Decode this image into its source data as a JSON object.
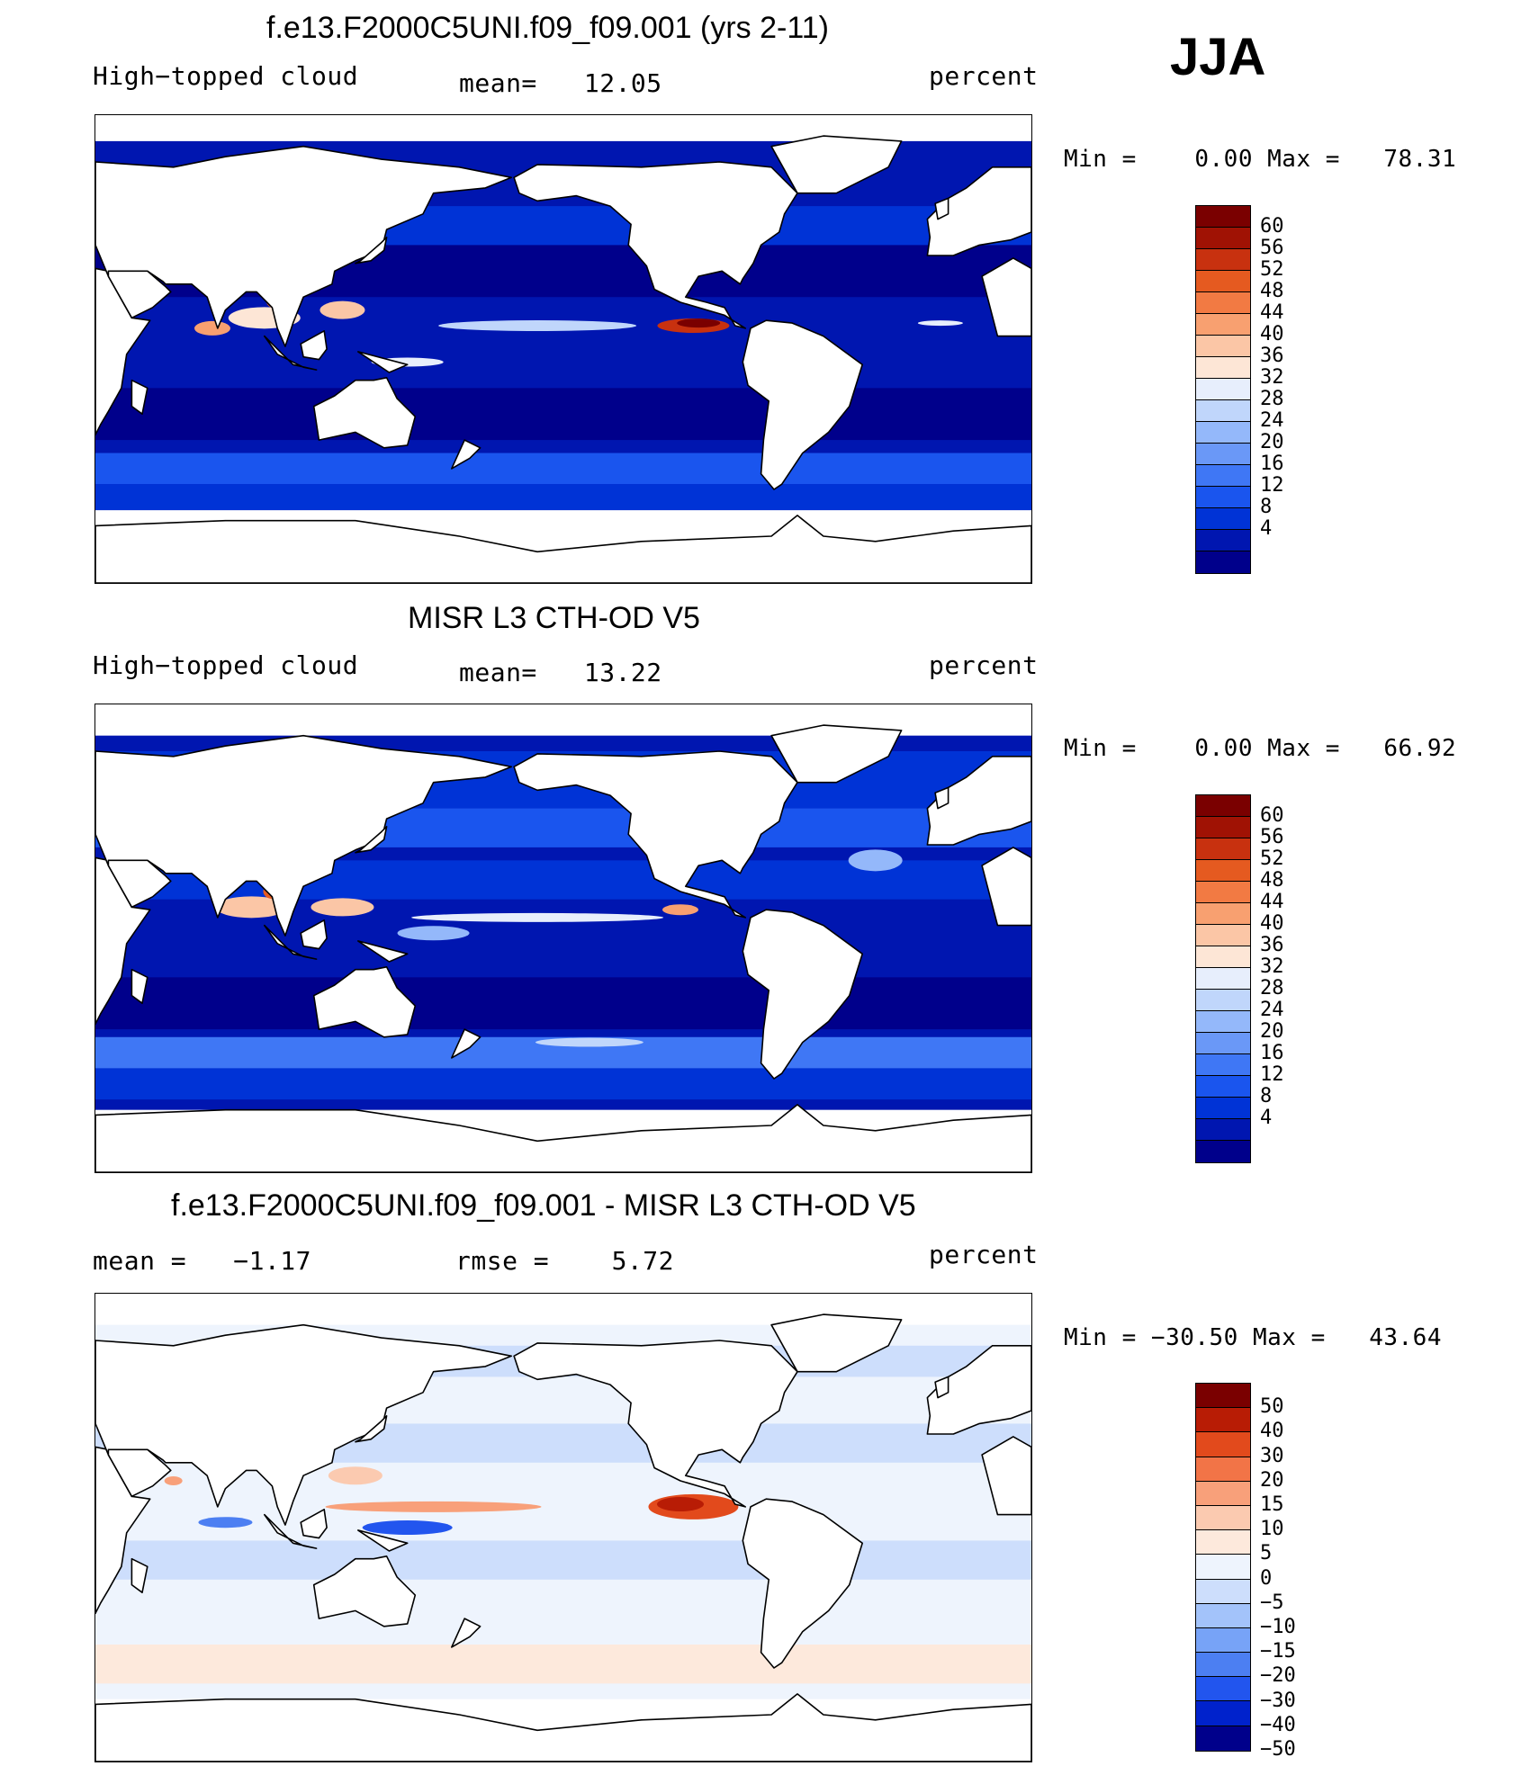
{
  "season": "JJA",
  "colors": {
    "land": "#ffffff",
    "coast": "#000000",
    "cloud_scale": [
      "#00008b",
      "#0016b0",
      "#0033d6",
      "#1a55ee",
      "#3f77f5",
      "#6a98f7",
      "#94b8fa",
      "#c0d6fb",
      "#e7eefc",
      "#fde6d6",
      "#fbc6a6",
      "#f8a070",
      "#f27a43",
      "#e55a20",
      "#c8310f",
      "#a01204",
      "#7a0000"
    ],
    "diff_scale": [
      "#00008b",
      "#0022cc",
      "#2255ee",
      "#4c7ff2",
      "#77a3f7",
      "#a3c3fa",
      "#cddefc",
      "#eef4fd",
      "#fde9dc",
      "#fbcab0",
      "#f8a07a",
      "#f27447",
      "#e24a1c",
      "#b81c05",
      "#7a0000"
    ]
  },
  "panels": [
    {
      "title": "f.e13.F2000C5UNI.f09_f09.001 (yrs 2-11)",
      "left_label": "High−topped cloud",
      "center_label": "mean=   12.05",
      "right_label": "percent",
      "min_max": "Min =    0.00 Max =   78.31",
      "colorbar_ticks": [
        "60",
        "56",
        "52",
        "48",
        "44",
        "40",
        "36",
        "32",
        "28",
        "24",
        "20",
        "16",
        "12",
        "8",
        "4"
      ]
    },
    {
      "title": "MISR L3 CTH-OD V5",
      "left_label": "High−topped cloud",
      "center_label": "mean=   13.22",
      "right_label": "percent",
      "min_max": "Min =    0.00 Max =   66.92",
      "colorbar_ticks": [
        "60",
        "56",
        "52",
        "48",
        "44",
        "40",
        "36",
        "32",
        "28",
        "24",
        "20",
        "16",
        "12",
        "8",
        "4"
      ]
    },
    {
      "title": "f.e13.F2000C5UNI.f09_f09.001 - MISR L3 CTH-OD V5",
      "left_label": "mean =   −1.17",
      "center_label": "rmse =    5.72",
      "right_label": "percent",
      "min_max": "Min = −30.50 Max =   43.64",
      "colorbar_ticks": [
        "50",
        "40",
        "30",
        "20",
        "15",
        "10",
        "5",
        "0",
        "−5",
        "−10",
        "−15",
        "−20",
        "−30",
        "−40",
        "−50"
      ]
    }
  ]
}
